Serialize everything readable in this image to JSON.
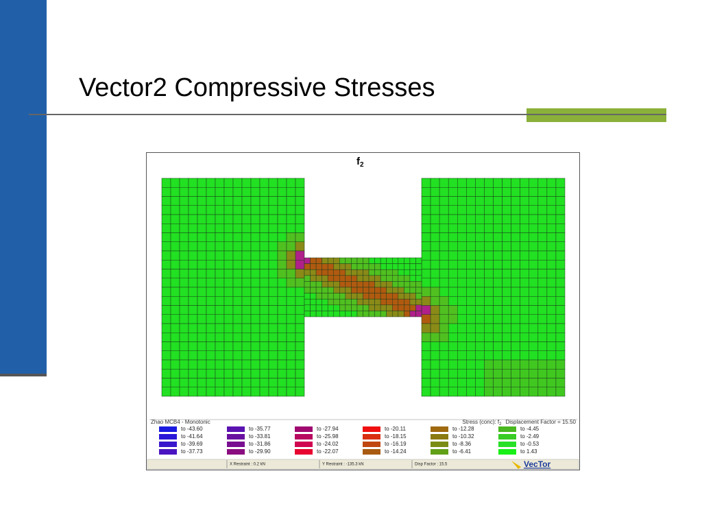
{
  "slide_title": "Vector2 Compressive Stresses",
  "plot": {
    "title_main": "f",
    "title_sub": "2",
    "model_name": "Zhao MCB4 - Monotonic",
    "stress_prefix": "Stress (conc):  f",
    "stress_sub": "2",
    "stress_suffix": "Displacement Factor = 15.50",
    "legend": [
      {
        "label": "to -43.60",
        "color": "#1a1ae0"
      },
      {
        "label": "to -41.64",
        "color": "#2a18d8"
      },
      {
        "label": "to -39.69",
        "color": "#3a16cc"
      },
      {
        "label": "to -37.73",
        "color": "#4a14c0"
      },
      {
        "label": "to -35.77",
        "color": "#5a12b0"
      },
      {
        "label": "to -33.81",
        "color": "#6a10a0"
      },
      {
        "label": "to -31.86",
        "color": "#7a0e90"
      },
      {
        "label": "to -29.90",
        "color": "#8a0c80"
      },
      {
        "label": "to -27.94",
        "color": "#a00a70"
      },
      {
        "label": "to -25.98",
        "color": "#b80860"
      },
      {
        "label": "to -24.02",
        "color": "#d00650"
      },
      {
        "label": "to -22.07",
        "color": "#e80430"
      },
      {
        "label": "to -20.11",
        "color": "#f01010"
      },
      {
        "label": "to -18.15",
        "color": "#d83010"
      },
      {
        "label": "to -16.19",
        "color": "#c04810"
      },
      {
        "label": "to -14.24",
        "color": "#a85a10"
      },
      {
        "label": "to -12.28",
        "color": "#a06a10"
      },
      {
        "label": "to -10.32",
        "color": "#8a7a10"
      },
      {
        "label": "to -8.36",
        "color": "#7a8c14"
      },
      {
        "label": "to -6.41",
        "color": "#62a018"
      },
      {
        "label": "to -4.45",
        "color": "#4ab820"
      },
      {
        "label": "to -2.49",
        "color": "#38cc24"
      },
      {
        "label": "to -0.53",
        "color": "#28e028"
      },
      {
        "label": "to  1.43",
        "color": "#18f018"
      }
    ],
    "status": [
      "X Restraint :  0.2 kN",
      "Y Restraint : -135.3 kN",
      "Disp Factor : 15.5"
    ],
    "brand": "VecTor"
  }
}
